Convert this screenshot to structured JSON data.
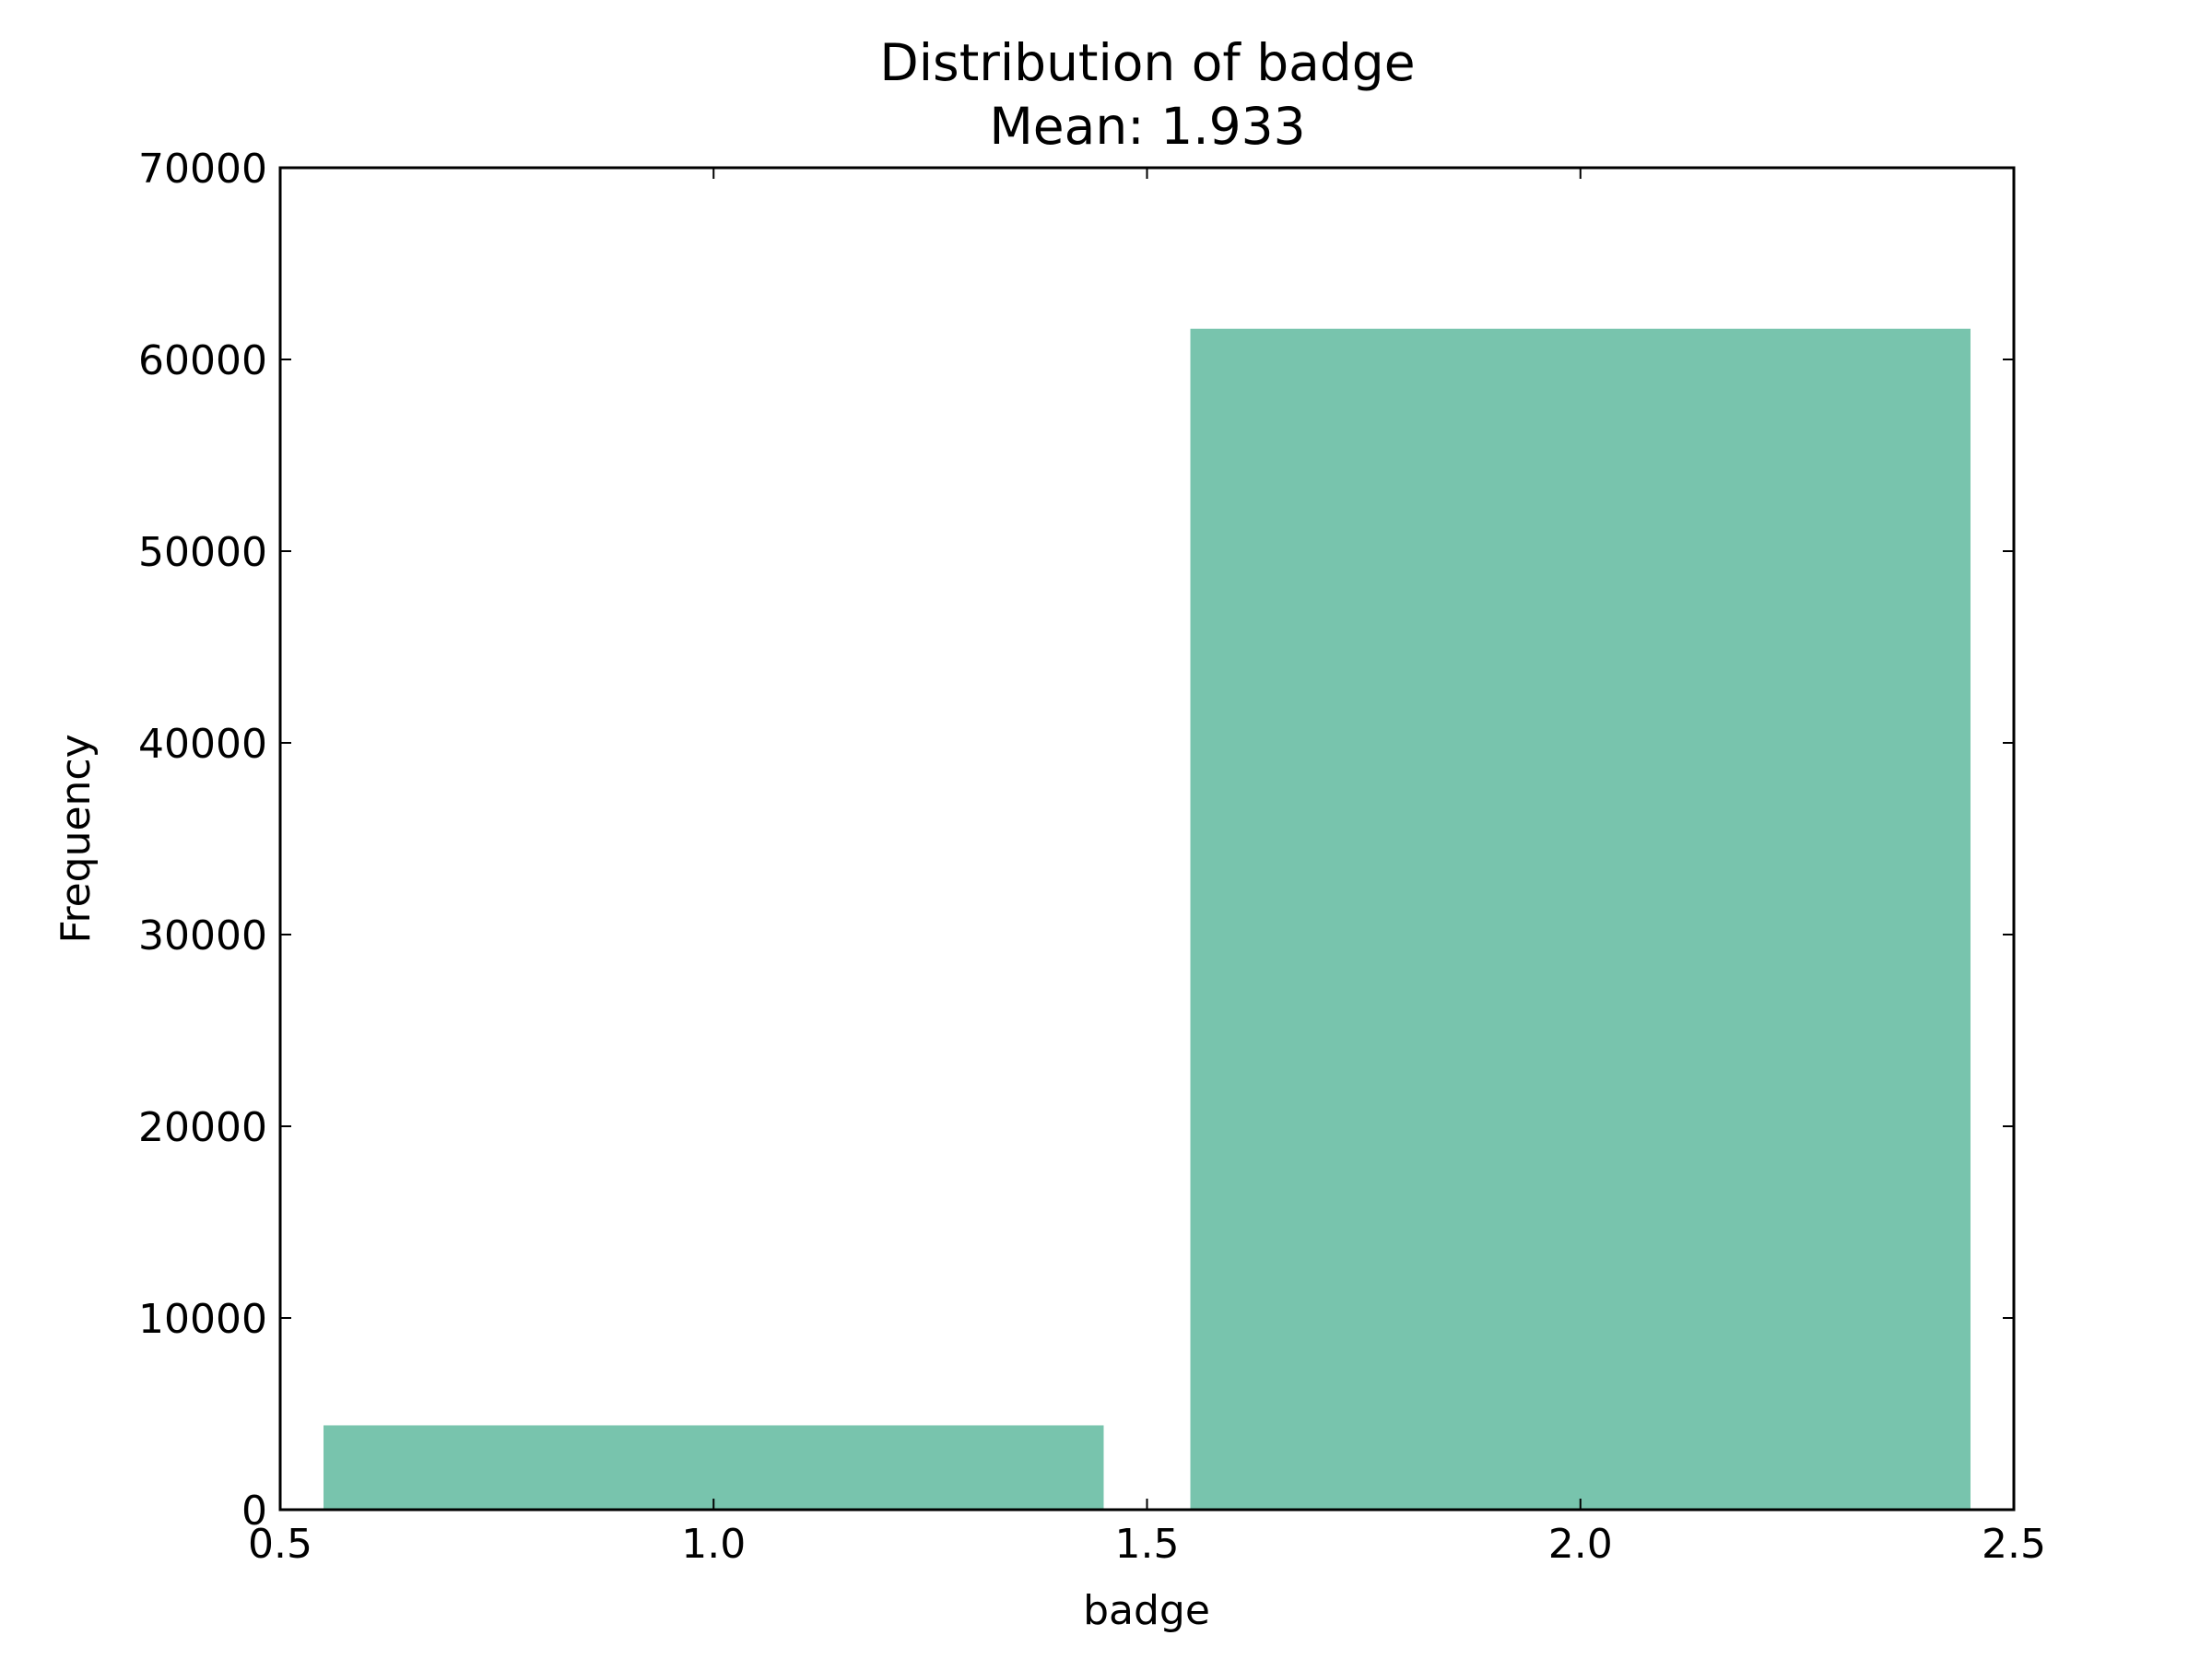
{
  "chart_data": {
    "type": "bar",
    "title": "Distribution of badge",
    "subtitle": "Mean: 1.933",
    "xlabel": "badge",
    "ylabel": "Frequency",
    "xlim": [
      0.5,
      2.5
    ],
    "ylim": [
      0,
      70000
    ],
    "x_ticks": [
      "0.5",
      "1.0",
      "1.5",
      "2.0",
      "2.5"
    ],
    "y_ticks": [
      "0",
      "10000",
      "20000",
      "30000",
      "40000",
      "50000",
      "60000",
      "70000"
    ],
    "bars": [
      {
        "x_start": 0.55,
        "x_end": 1.45,
        "value": 4400
      },
      {
        "x_start": 1.55,
        "x_end": 2.45,
        "value": 61600
      }
    ],
    "bar_color": "#78c4ad",
    "grid": false,
    "legend": "none"
  }
}
